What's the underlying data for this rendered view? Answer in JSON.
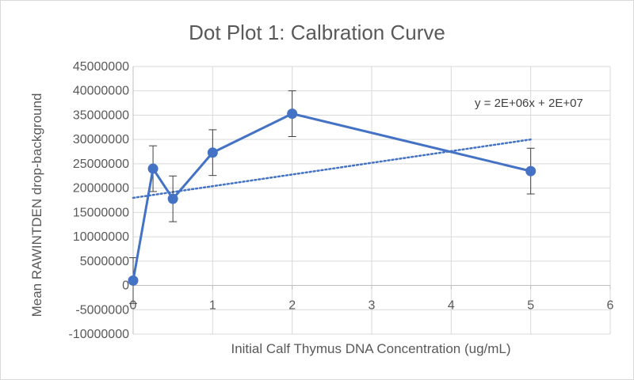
{
  "chart_data": {
    "type": "scatter",
    "title": "Dot Plot 1: Calbration Curve",
    "xlabel": "Initial Calf Thymus DNA Concentration (ug/mL)",
    "ylabel": "Mean  RAWINTDEN drop-background",
    "xlim": [
      0,
      6
    ],
    "ylim": [
      -10000000,
      45000000
    ],
    "x_ticks": [
      0,
      1,
      2,
      3,
      4,
      5,
      6
    ],
    "y_ticks": [
      -10000000,
      -5000000,
      0,
      5000000,
      10000000,
      15000000,
      20000000,
      25000000,
      30000000,
      35000000,
      40000000,
      45000000
    ],
    "x_tick_labels": [
      "0",
      "1",
      "2",
      "3",
      "4",
      "5",
      "6"
    ],
    "y_tick_labels": [
      "-10000000",
      "-5000000",
      "0",
      "5000000",
      "10000000",
      "15000000",
      "20000000",
      "25000000",
      "30000000",
      "35000000",
      "40000000",
      "45000000"
    ],
    "grid": true,
    "series": [
      {
        "name": "Mean RAWINTDEN",
        "color": "#4472c4",
        "x": [
          0,
          0.25,
          0.5,
          1,
          2,
          5
        ],
        "y": [
          1000000,
          24000000,
          17800000,
          27300000,
          35300000,
          23500000
        ],
        "error": [
          4700000,
          4700000,
          4700000,
          4700000,
          4700000,
          4700000
        ]
      }
    ],
    "trendline": {
      "type": "linear",
      "color": "#4472c4",
      "x": [
        0,
        5
      ],
      "y": [
        18000000,
        30000000
      ],
      "equation": "y = 2E+06x + 2E+07"
    }
  }
}
